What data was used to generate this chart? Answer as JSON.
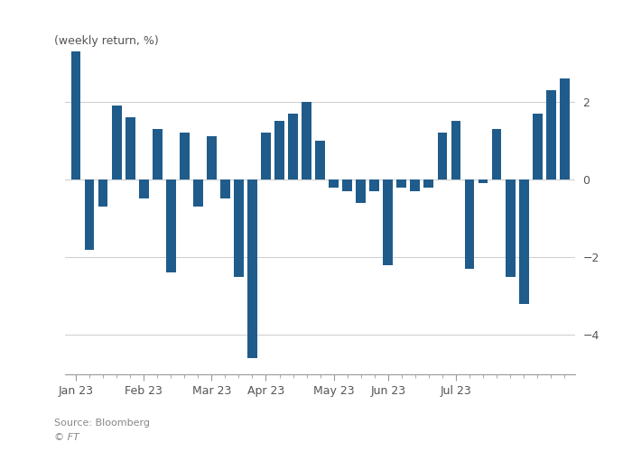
{
  "ylabel": "(weekly return, %)",
  "bar_color": "#1f5c8b",
  "background_color": "#ffffff",
  "grid_color": "#d0d0d0",
  "ylim": [
    -5.0,
    3.8
  ],
  "yticks": [
    -4,
    -2,
    0,
    2
  ],
  "source_text": "Source: Bloomberg",
  "ft_text": "© FT",
  "weekly_returns": [
    3.3,
    -1.8,
    -0.7,
    1.9,
    1.6,
    -0.5,
    1.3,
    -2.4,
    1.2,
    -0.7,
    1.1,
    -0.5,
    -2.5,
    -4.6,
    1.2,
    1.5,
    1.7,
    2.0,
    1.0,
    -0.2,
    -0.3,
    -0.6,
    -0.3,
    -2.2,
    -0.2,
    -0.3,
    -0.2,
    1.2,
    1.5,
    -2.3,
    -0.1,
    1.3,
    -2.5,
    -3.2,
    1.7,
    2.3,
    2.6
  ],
  "x_tick_labels": [
    "Jan 23",
    "Feb 23",
    "Mar 23",
    "Apr 23",
    "May 23",
    "Jun 23",
    "Jul 23"
  ],
  "x_tick_positions": [
    0,
    5,
    10,
    14,
    19,
    23,
    28
  ],
  "ylabel_fontsize": 9,
  "tick_fontsize": 9
}
